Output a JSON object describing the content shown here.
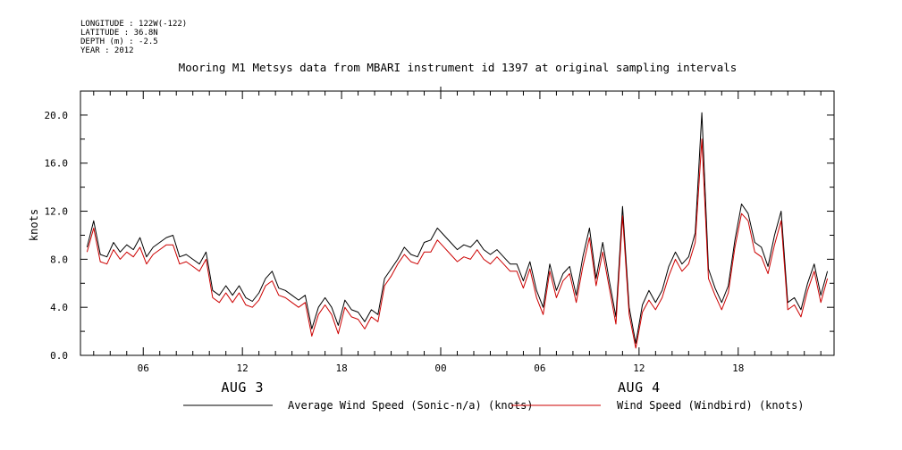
{
  "meta": {
    "longitude": "LONGITUDE : 122W(-122)",
    "latitude": "LATITUDE : 36.8N",
    "depth": "DEPTH (m) : -2.5",
    "year": "YEAR : 2012"
  },
  "chart_data": {
    "type": "line",
    "title": "Mooring M1 Metsys data from MBARI instrument id 1397 at original sampling intervals",
    "ylabel": "knots",
    "xlabel": "",
    "ylim": [
      0,
      22
    ],
    "y_ticks": [
      "0.0",
      "4.0",
      "8.0",
      "12.0",
      "16.0",
      "20.0"
    ],
    "xlim_hours": [
      2.2,
      47.8
    ],
    "x_ticks": [
      {
        "hour": 6,
        "label": "06"
      },
      {
        "hour": 12,
        "label": "12"
      },
      {
        "hour": 18,
        "label": "18"
      },
      {
        "hour": 24,
        "label": "00"
      },
      {
        "hour": 30,
        "label": "06"
      },
      {
        "hour": 36,
        "label": "12"
      },
      {
        "hour": 42,
        "label": "18"
      }
    ],
    "date_labels": [
      {
        "hour": 12,
        "label": "AUG  3"
      },
      {
        "hour": 36,
        "label": "AUG  4"
      }
    ],
    "grid": false,
    "legend_position": "bottom",
    "series": [
      {
        "name": "Average Wind Speed (Sonic-n/a) (knots)",
        "color": "#000000",
        "x": [
          2.6,
          3.0,
          3.4,
          3.8,
          4.2,
          4.6,
          5.0,
          5.4,
          5.8,
          6.2,
          6.6,
          7.0,
          7.4,
          7.8,
          8.2,
          8.6,
          9.0,
          9.4,
          9.8,
          10.2,
          10.6,
          11.0,
          11.4,
          11.8,
          12.2,
          12.6,
          13.0,
          13.4,
          13.8,
          14.2,
          14.6,
          15.0,
          15.4,
          15.8,
          16.2,
          16.6,
          17.0,
          17.4,
          17.8,
          18.2,
          18.6,
          19.0,
          19.4,
          19.8,
          20.2,
          20.6,
          21.0,
          21.4,
          21.8,
          22.2,
          22.6,
          23.0,
          23.4,
          23.8,
          24.2,
          24.6,
          25.0,
          25.4,
          25.8,
          26.2,
          26.6,
          27.0,
          27.4,
          27.8,
          28.2,
          28.6,
          29.0,
          29.4,
          29.8,
          30.2,
          30.6,
          31.0,
          31.4,
          31.8,
          32.2,
          32.6,
          33.0,
          33.4,
          33.8,
          34.2,
          34.6,
          35.0,
          35.4,
          35.8,
          36.2,
          36.6,
          37.0,
          37.4,
          37.8,
          38.2,
          38.6,
          39.0,
          39.4,
          39.8,
          40.2,
          40.6,
          41.0,
          41.4,
          41.8,
          42.2,
          42.6,
          43.0,
          43.4,
          43.8,
          44.2,
          44.6,
          45.0,
          45.4,
          45.8,
          46.2,
          46.6,
          47.0,
          47.4
        ],
        "values": [
          9.0,
          11.2,
          8.4,
          8.2,
          9.4,
          8.6,
          9.2,
          8.8,
          9.8,
          8.2,
          9.0,
          9.4,
          9.8,
          10.0,
          8.2,
          8.4,
          8.0,
          7.6,
          8.6,
          5.4,
          5.0,
          5.8,
          5.0,
          5.8,
          4.8,
          4.5,
          5.2,
          6.4,
          7.0,
          5.6,
          5.4,
          5.0,
          4.6,
          5.0,
          2.2,
          4.0,
          4.8,
          4.0,
          2.5,
          4.6,
          3.8,
          3.6,
          2.8,
          3.8,
          3.4,
          6.4,
          7.2,
          8.0,
          9.0,
          8.4,
          8.2,
          9.4,
          9.6,
          10.6,
          10.0,
          9.4,
          8.8,
          9.2,
          9.0,
          9.6,
          8.8,
          8.4,
          8.8,
          8.2,
          7.6,
          7.6,
          6.2,
          7.8,
          5.4,
          4.0,
          7.6,
          5.4,
          6.8,
          7.4,
          5.0,
          8.2,
          10.6,
          6.4,
          9.4,
          6.2,
          3.2,
          12.4,
          4.0,
          1.0,
          4.2,
          5.4,
          4.4,
          5.4,
          7.4,
          8.6,
          7.6,
          8.2,
          10.2,
          20.2,
          7.2,
          5.6,
          4.4,
          5.8,
          9.6,
          12.6,
          11.8,
          9.4,
          9.0,
          7.4,
          10.0,
          12.0,
          4.4,
          4.8,
          3.8,
          6.0,
          7.6,
          5.0,
          7.0
        ]
      },
      {
        "name": "Wind Speed (Windbird) (knots)",
        "color": "#cc0000",
        "x": [
          2.6,
          3.0,
          3.4,
          3.8,
          4.2,
          4.6,
          5.0,
          5.4,
          5.8,
          6.2,
          6.6,
          7.0,
          7.4,
          7.8,
          8.2,
          8.6,
          9.0,
          9.4,
          9.8,
          10.2,
          10.6,
          11.0,
          11.4,
          11.8,
          12.2,
          12.6,
          13.0,
          13.4,
          13.8,
          14.2,
          14.6,
          15.0,
          15.4,
          15.8,
          16.2,
          16.6,
          17.0,
          17.4,
          17.8,
          18.2,
          18.6,
          19.0,
          19.4,
          19.8,
          20.2,
          20.6,
          21.0,
          21.4,
          21.8,
          22.2,
          22.6,
          23.0,
          23.4,
          23.8,
          24.2,
          24.6,
          25.0,
          25.4,
          25.8,
          26.2,
          26.6,
          27.0,
          27.4,
          27.8,
          28.2,
          28.6,
          29.0,
          29.4,
          29.8,
          30.2,
          30.6,
          31.0,
          31.4,
          31.8,
          32.2,
          32.6,
          33.0,
          33.4,
          33.8,
          34.2,
          34.6,
          35.0,
          35.4,
          35.8,
          36.2,
          36.6,
          37.0,
          37.4,
          37.8,
          38.2,
          38.6,
          39.0,
          39.4,
          39.8,
          40.2,
          40.6,
          41.0,
          41.4,
          41.8,
          42.2,
          42.6,
          43.0,
          43.4,
          43.8,
          44.2,
          44.6,
          45.0,
          45.4,
          45.8,
          46.2,
          46.6,
          47.0,
          47.4
        ],
        "values": [
          8.6,
          10.6,
          7.8,
          7.6,
          8.8,
          8.0,
          8.6,
          8.2,
          9.0,
          7.6,
          8.4,
          8.8,
          9.2,
          9.2,
          7.6,
          7.8,
          7.4,
          7.0,
          8.0,
          4.8,
          4.4,
          5.2,
          4.4,
          5.2,
          4.2,
          4.0,
          4.6,
          5.8,
          6.2,
          5.0,
          4.8,
          4.4,
          4.0,
          4.4,
          1.6,
          3.4,
          4.2,
          3.4,
          1.8,
          4.0,
          3.2,
          3.0,
          2.2,
          3.2,
          2.8,
          5.8,
          6.6,
          7.6,
          8.4,
          7.8,
          7.6,
          8.6,
          8.6,
          9.6,
          9.0,
          8.4,
          7.8,
          8.2,
          8.0,
          8.8,
          8.0,
          7.6,
          8.2,
          7.6,
          7.0,
          7.0,
          5.6,
          7.2,
          4.8,
          3.4,
          7.0,
          4.8,
          6.2,
          6.8,
          4.4,
          7.4,
          9.8,
          5.8,
          8.6,
          5.6,
          2.6,
          11.6,
          3.4,
          0.6,
          3.6,
          4.6,
          3.8,
          4.8,
          6.6,
          8.0,
          7.0,
          7.6,
          9.4,
          18.0,
          6.4,
          5.0,
          3.8,
          5.2,
          9.0,
          11.8,
          11.2,
          8.6,
          8.2,
          6.8,
          9.2,
          11.2,
          3.8,
          4.2,
          3.2,
          5.4,
          7.0,
          4.4,
          6.4
        ]
      }
    ]
  }
}
